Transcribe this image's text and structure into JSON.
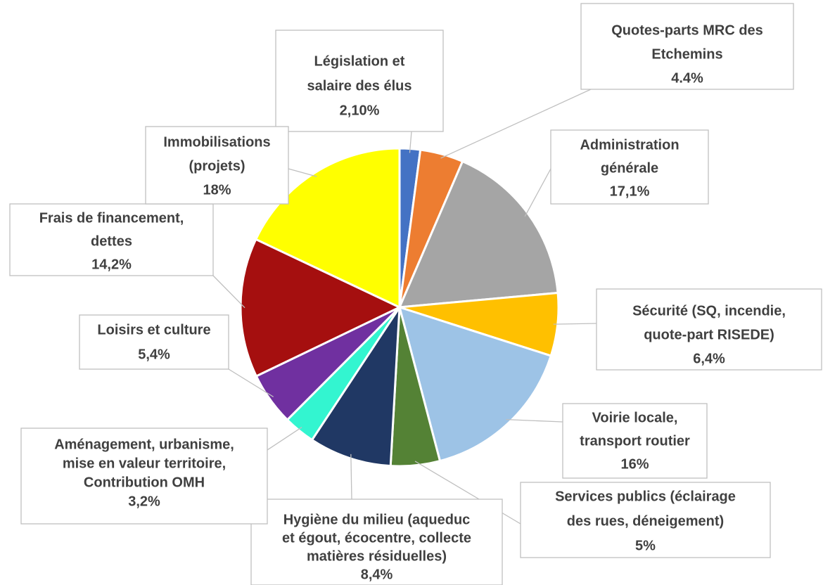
{
  "chart_data": {
    "type": "pie",
    "categories": [
      [
        "Législation et",
        "salaire des élus"
      ],
      [
        "Quotes-parts MRC des",
        "Etchemins"
      ],
      [
        "Administration",
        "générale"
      ],
      [
        "Sécurité (SQ, incendie,",
        "quote-part RISEDE)"
      ],
      [
        "Voirie locale,",
        "transport routier"
      ],
      [
        "Services publics (éclairage",
        "des rues, déneigement)"
      ],
      [
        "Hygiène du milieu (aqueduc",
        "et égout, écocentre, collecte",
        "matières résiduelles)"
      ],
      [
        "Aménagement, urbanisme,",
        "mise en valeur territoire,",
        "Contribution OMH"
      ],
      [
        "Loisirs et culture"
      ],
      [
        "Frais de financement,",
        "dettes"
      ],
      [
        "Immobilisations",
        "(projets)"
      ]
    ],
    "values": [
      2.1,
      4.4,
      17.1,
      6.4,
      16,
      5,
      8.4,
      3.2,
      5.4,
      14.2,
      18
    ],
    "value_labels": [
      "2,10%",
      "4.4%",
      "17,1%",
      "6,4%",
      "16%",
      "5%",
      "8,4%",
      "3,2%",
      "5,4%",
      "14,2%",
      "18%"
    ],
    "colors": [
      "#4472c4",
      "#ed7d31",
      "#a5a5a5",
      "#ffc000",
      "#9dc3e6",
      "#548235",
      "#203864",
      "#33f5d0",
      "#7030a0",
      "#a50f0f",
      "#ffff00"
    ]
  }
}
